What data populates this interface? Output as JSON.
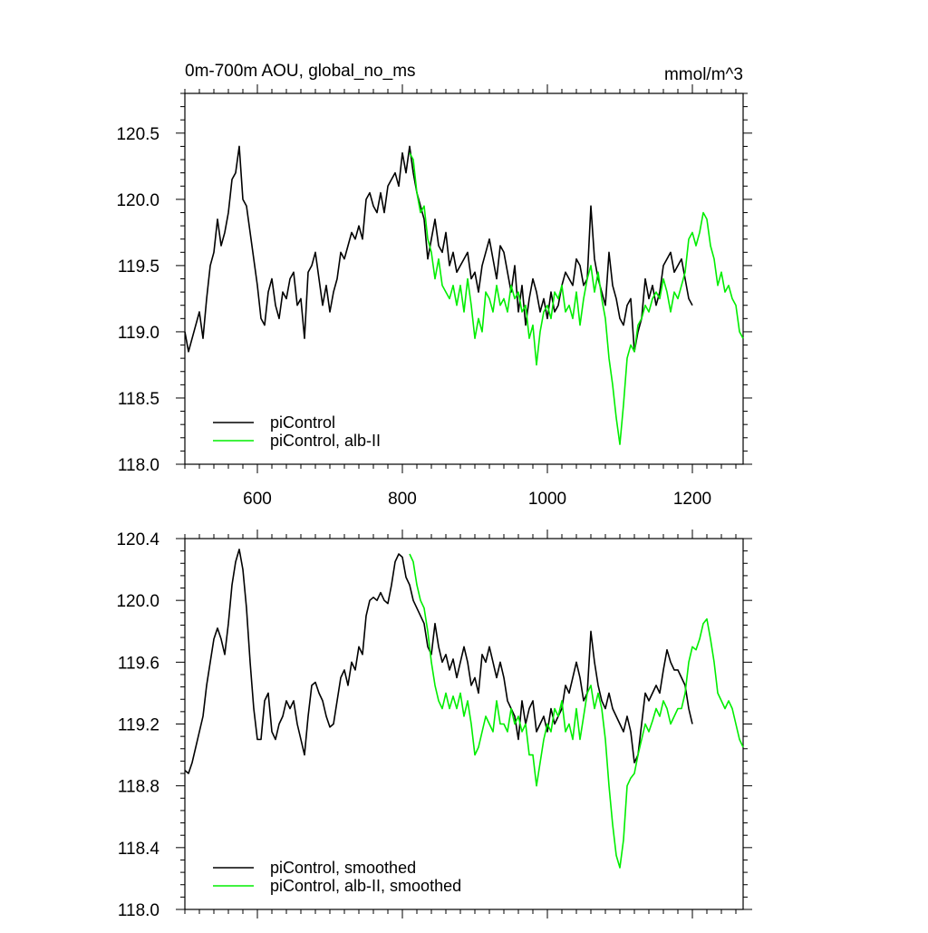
{
  "chart_data": [
    {
      "type": "line",
      "title": "0m-700m AOU, global_no_ms",
      "units": "mmol/m^3",
      "xlim": [
        500,
        1270
      ],
      "ylim": [
        118.0,
        120.8
      ],
      "xticks": [
        600,
        800,
        1000,
        1200
      ],
      "xtick_labels": [
        "600",
        "800",
        "1000",
        "1200"
      ],
      "yticks": [
        118.0,
        118.5,
        119.0,
        119.5,
        120.0,
        120.5
      ],
      "ytick_labels": [
        "118.0",
        "118.5",
        "119.0",
        "119.5",
        "120.0",
        "120.5"
      ],
      "legend_position": "bottom-left",
      "series": [
        {
          "name": "piControl",
          "color": "#000000",
          "x": [
            500,
            505,
            510,
            515,
            520,
            525,
            530,
            535,
            540,
            545,
            550,
            555,
            560,
            565,
            570,
            575,
            580,
            585,
            590,
            595,
            600,
            605,
            610,
            615,
            620,
            625,
            630,
            635,
            640,
            645,
            650,
            655,
            660,
            665,
            670,
            675,
            680,
            685,
            690,
            695,
            700,
            705,
            710,
            715,
            720,
            725,
            730,
            735,
            740,
            745,
            750,
            755,
            760,
            765,
            770,
            775,
            780,
            785,
            790,
            795,
            800,
            805,
            810,
            815,
            820,
            825,
            830,
            835,
            840,
            845,
            850,
            855,
            860,
            865,
            870,
            875,
            880,
            885,
            890,
            895,
            900,
            905,
            910,
            915,
            920,
            925,
            930,
            935,
            940,
            945,
            950,
            955,
            960,
            965,
            970,
            975,
            980,
            985,
            990,
            995,
            1000,
            1005,
            1010,
            1015,
            1020,
            1025,
            1030,
            1035,
            1040,
            1045,
            1050,
            1055,
            1060,
            1065,
            1070,
            1075,
            1080,
            1085,
            1090,
            1095,
            1100,
            1105,
            1110,
            1115,
            1120,
            1125,
            1130,
            1135,
            1140,
            1145,
            1150,
            1155,
            1160,
            1165,
            1170,
            1175,
            1180,
            1185,
            1190,
            1195,
            1200
          ],
          "y": [
            119.0,
            118.85,
            118.95,
            119.05,
            119.15,
            118.95,
            119.25,
            119.5,
            119.6,
            119.85,
            119.65,
            119.75,
            119.9,
            120.15,
            120.2,
            120.4,
            120.0,
            119.95,
            119.75,
            119.55,
            119.35,
            119.1,
            119.05,
            119.3,
            119.4,
            119.2,
            119.1,
            119.3,
            119.25,
            119.4,
            119.45,
            119.2,
            119.25,
            118.95,
            119.45,
            119.5,
            119.6,
            119.4,
            119.2,
            119.35,
            119.15,
            119.3,
            119.4,
            119.6,
            119.55,
            119.65,
            119.75,
            119.7,
            119.8,
            119.7,
            120.0,
            120.05,
            119.95,
            119.9,
            120.05,
            119.9,
            120.1,
            120.15,
            120.2,
            120.1,
            120.35,
            120.2,
            120.4,
            120.2,
            120.05,
            119.95,
            119.85,
            119.55,
            119.7,
            119.85,
            119.65,
            119.6,
            119.75,
            119.5,
            119.6,
            119.45,
            119.5,
            119.55,
            119.6,
            119.4,
            119.45,
            119.3,
            119.5,
            119.6,
            119.7,
            119.55,
            119.4,
            119.65,
            119.6,
            119.45,
            119.3,
            119.5,
            119.15,
            119.35,
            119.05,
            119.25,
            119.4,
            119.3,
            119.15,
            119.25,
            119.1,
            119.3,
            119.15,
            119.2,
            119.35,
            119.45,
            119.4,
            119.35,
            119.55,
            119.5,
            119.35,
            119.4,
            119.95,
            119.55,
            119.4,
            119.3,
            119.2,
            119.6,
            119.35,
            119.25,
            119.1,
            119.05,
            119.2,
            119.25,
            118.85,
            119.0,
            119.1,
            119.4,
            119.25,
            119.35,
            119.2,
            119.3,
            119.5,
            119.55,
            119.6,
            119.45,
            119.5,
            119.55,
            119.4,
            119.25,
            119.2
          ]
        },
        {
          "name": "piControl, alb-II",
          "color": "#00ee00",
          "x": [
            810,
            815,
            820,
            825,
            830,
            835,
            840,
            845,
            850,
            855,
            860,
            865,
            870,
            875,
            880,
            885,
            890,
            895,
            900,
            905,
            910,
            915,
            920,
            925,
            930,
            935,
            940,
            945,
            950,
            955,
            960,
            965,
            970,
            975,
            980,
            985,
            990,
            995,
            1000,
            1005,
            1010,
            1015,
            1020,
            1025,
            1030,
            1035,
            1040,
            1045,
            1050,
            1055,
            1060,
            1065,
            1070,
            1075,
            1080,
            1085,
            1090,
            1095,
            1100,
            1105,
            1110,
            1115,
            1120,
            1125,
            1130,
            1135,
            1140,
            1145,
            1150,
            1155,
            1160,
            1165,
            1170,
            1175,
            1180,
            1185,
            1190,
            1195,
            1200,
            1205,
            1210,
            1215,
            1220,
            1225,
            1230,
            1235,
            1240,
            1245,
            1250,
            1255,
            1260,
            1265,
            1270
          ],
          "y": [
            120.35,
            120.3,
            120.05,
            119.9,
            119.95,
            119.7,
            119.6,
            119.4,
            119.55,
            119.35,
            119.3,
            119.25,
            119.35,
            119.2,
            119.35,
            119.15,
            119.4,
            119.2,
            118.95,
            119.1,
            119.0,
            119.3,
            119.25,
            119.15,
            119.35,
            119.2,
            119.25,
            119.15,
            119.35,
            119.25,
            119.3,
            119.15,
            119.2,
            118.95,
            119.05,
            118.75,
            119.0,
            119.15,
            119.2,
            119.1,
            119.3,
            119.25,
            119.35,
            119.15,
            119.2,
            119.1,
            119.3,
            119.05,
            119.25,
            119.4,
            119.5,
            119.3,
            119.45,
            119.25,
            119.1,
            118.8,
            118.6,
            118.35,
            118.15,
            118.45,
            118.8,
            118.9,
            118.85,
            119.05,
            119.1,
            119.2,
            119.15,
            119.25,
            119.3,
            119.25,
            119.4,
            119.3,
            119.15,
            119.3,
            119.25,
            119.35,
            119.45,
            119.7,
            119.75,
            119.65,
            119.75,
            119.9,
            119.85,
            119.65,
            119.55,
            119.35,
            119.45,
            119.3,
            119.35,
            119.25,
            119.2,
            119.0,
            118.95
          ]
        }
      ]
    },
    {
      "type": "line",
      "title": "",
      "xlim": [
        500,
        1270
      ],
      "ylim": [
        118.0,
        120.4
      ],
      "xticks": [
        600,
        800,
        1000,
        1200
      ],
      "yticks": [
        118.0,
        118.4,
        118.8,
        119.2,
        119.6,
        120.0,
        120.4
      ],
      "ytick_labels": [
        "118.0",
        "118.4",
        "118.8",
        "119.2",
        "119.6",
        "120.0",
        "120.4"
      ],
      "legend_position": "bottom-left",
      "series": [
        {
          "name": "piControl, smoothed",
          "color": "#000000",
          "x": [
            500,
            505,
            510,
            515,
            520,
            525,
            530,
            535,
            540,
            545,
            550,
            555,
            560,
            565,
            570,
            575,
            580,
            585,
            590,
            595,
            600,
            605,
            610,
            615,
            620,
            625,
            630,
            635,
            640,
            645,
            650,
            655,
            660,
            665,
            670,
            675,
            680,
            685,
            690,
            695,
            700,
            705,
            710,
            715,
            720,
            725,
            730,
            735,
            740,
            745,
            750,
            755,
            760,
            765,
            770,
            775,
            780,
            785,
            790,
            795,
            800,
            805,
            810,
            815,
            820,
            825,
            830,
            835,
            840,
            845,
            850,
            855,
            860,
            865,
            870,
            875,
            880,
            885,
            890,
            895,
            900,
            905,
            910,
            915,
            920,
            925,
            930,
            935,
            940,
            945,
            950,
            955,
            960,
            965,
            970,
            975,
            980,
            985,
            990,
            995,
            1000,
            1005,
            1010,
            1015,
            1020,
            1025,
            1030,
            1035,
            1040,
            1045,
            1050,
            1055,
            1060,
            1065,
            1070,
            1075,
            1080,
            1085,
            1090,
            1095,
            1100,
            1105,
            1110,
            1115,
            1120,
            1125,
            1130,
            1135,
            1140,
            1145,
            1150,
            1155,
            1160,
            1165,
            1170,
            1175,
            1180,
            1185,
            1190,
            1195,
            1200
          ],
          "y": [
            118.9,
            118.88,
            118.95,
            119.05,
            119.15,
            119.25,
            119.45,
            119.6,
            119.75,
            119.82,
            119.75,
            119.65,
            119.85,
            120.1,
            120.25,
            120.33,
            120.2,
            119.95,
            119.6,
            119.3,
            119.1,
            119.1,
            119.35,
            119.4,
            119.15,
            119.1,
            119.2,
            119.25,
            119.35,
            119.3,
            119.35,
            119.2,
            119.1,
            119.0,
            119.25,
            119.45,
            119.47,
            119.4,
            119.35,
            119.25,
            119.18,
            119.2,
            119.35,
            119.5,
            119.55,
            119.45,
            119.6,
            119.55,
            119.7,
            119.65,
            119.9,
            120.0,
            120.02,
            120.0,
            120.05,
            120.0,
            119.98,
            120.1,
            120.25,
            120.3,
            120.28,
            120.15,
            120.1,
            120.0,
            119.95,
            119.9,
            119.85,
            119.7,
            119.65,
            119.85,
            119.7,
            119.6,
            119.65,
            119.55,
            119.62,
            119.5,
            119.6,
            119.7,
            119.6,
            119.45,
            119.5,
            119.4,
            119.65,
            119.6,
            119.7,
            119.6,
            119.5,
            119.6,
            119.5,
            119.35,
            119.3,
            119.25,
            119.1,
            119.35,
            119.2,
            119.3,
            119.35,
            119.15,
            119.2,
            119.25,
            119.15,
            119.3,
            119.2,
            119.25,
            119.3,
            119.45,
            119.4,
            119.5,
            119.6,
            119.5,
            119.35,
            119.4,
            119.8,
            119.6,
            119.45,
            119.35,
            119.3,
            119.4,
            119.3,
            119.25,
            119.2,
            119.15,
            119.25,
            119.15,
            118.95,
            119.0,
            119.2,
            119.4,
            119.35,
            119.4,
            119.45,
            119.4,
            119.55,
            119.68,
            119.6,
            119.55,
            119.55,
            119.5,
            119.45,
            119.3,
            119.2
          ]
        },
        {
          "name": "piControl, alb-II, smoothed",
          "color": "#00ee00",
          "x": [
            810,
            815,
            820,
            825,
            830,
            835,
            840,
            845,
            850,
            855,
            860,
            865,
            870,
            875,
            880,
            885,
            890,
            895,
            900,
            905,
            910,
            915,
            920,
            925,
            930,
            935,
            940,
            945,
            950,
            955,
            960,
            965,
            970,
            975,
            980,
            985,
            990,
            995,
            1000,
            1005,
            1010,
            1015,
            1020,
            1025,
            1030,
            1035,
            1040,
            1045,
            1050,
            1055,
            1060,
            1065,
            1070,
            1075,
            1080,
            1085,
            1090,
            1095,
            1100,
            1105,
            1110,
            1115,
            1120,
            1125,
            1130,
            1135,
            1140,
            1145,
            1150,
            1155,
            1160,
            1165,
            1170,
            1175,
            1180,
            1185,
            1190,
            1195,
            1200,
            1205,
            1210,
            1215,
            1220,
            1225,
            1230,
            1235,
            1240,
            1245,
            1250,
            1255,
            1260,
            1265,
            1270
          ],
          "y": [
            120.3,
            120.25,
            120.1,
            120.0,
            119.95,
            119.8,
            119.6,
            119.45,
            119.35,
            119.3,
            119.4,
            119.3,
            119.38,
            119.3,
            119.4,
            119.25,
            119.35,
            119.2,
            119.0,
            119.05,
            119.15,
            119.25,
            119.2,
            119.15,
            119.35,
            119.2,
            119.2,
            119.15,
            119.3,
            119.2,
            119.25,
            119.15,
            119.2,
            119.0,
            119.0,
            118.8,
            118.95,
            119.1,
            119.2,
            119.15,
            119.3,
            119.25,
            119.35,
            119.15,
            119.2,
            119.1,
            119.3,
            119.1,
            119.25,
            119.4,
            119.45,
            119.3,
            119.4,
            119.3,
            119.1,
            118.8,
            118.55,
            118.35,
            118.27,
            118.45,
            118.8,
            118.85,
            118.88,
            119.0,
            119.1,
            119.2,
            119.15,
            119.22,
            119.3,
            119.25,
            119.35,
            119.3,
            119.2,
            119.25,
            119.3,
            119.3,
            119.4,
            119.6,
            119.7,
            119.68,
            119.75,
            119.85,
            119.88,
            119.75,
            119.6,
            119.4,
            119.35,
            119.3,
            119.35,
            119.3,
            119.2,
            119.1,
            119.05
          ]
        }
      ]
    }
  ]
}
